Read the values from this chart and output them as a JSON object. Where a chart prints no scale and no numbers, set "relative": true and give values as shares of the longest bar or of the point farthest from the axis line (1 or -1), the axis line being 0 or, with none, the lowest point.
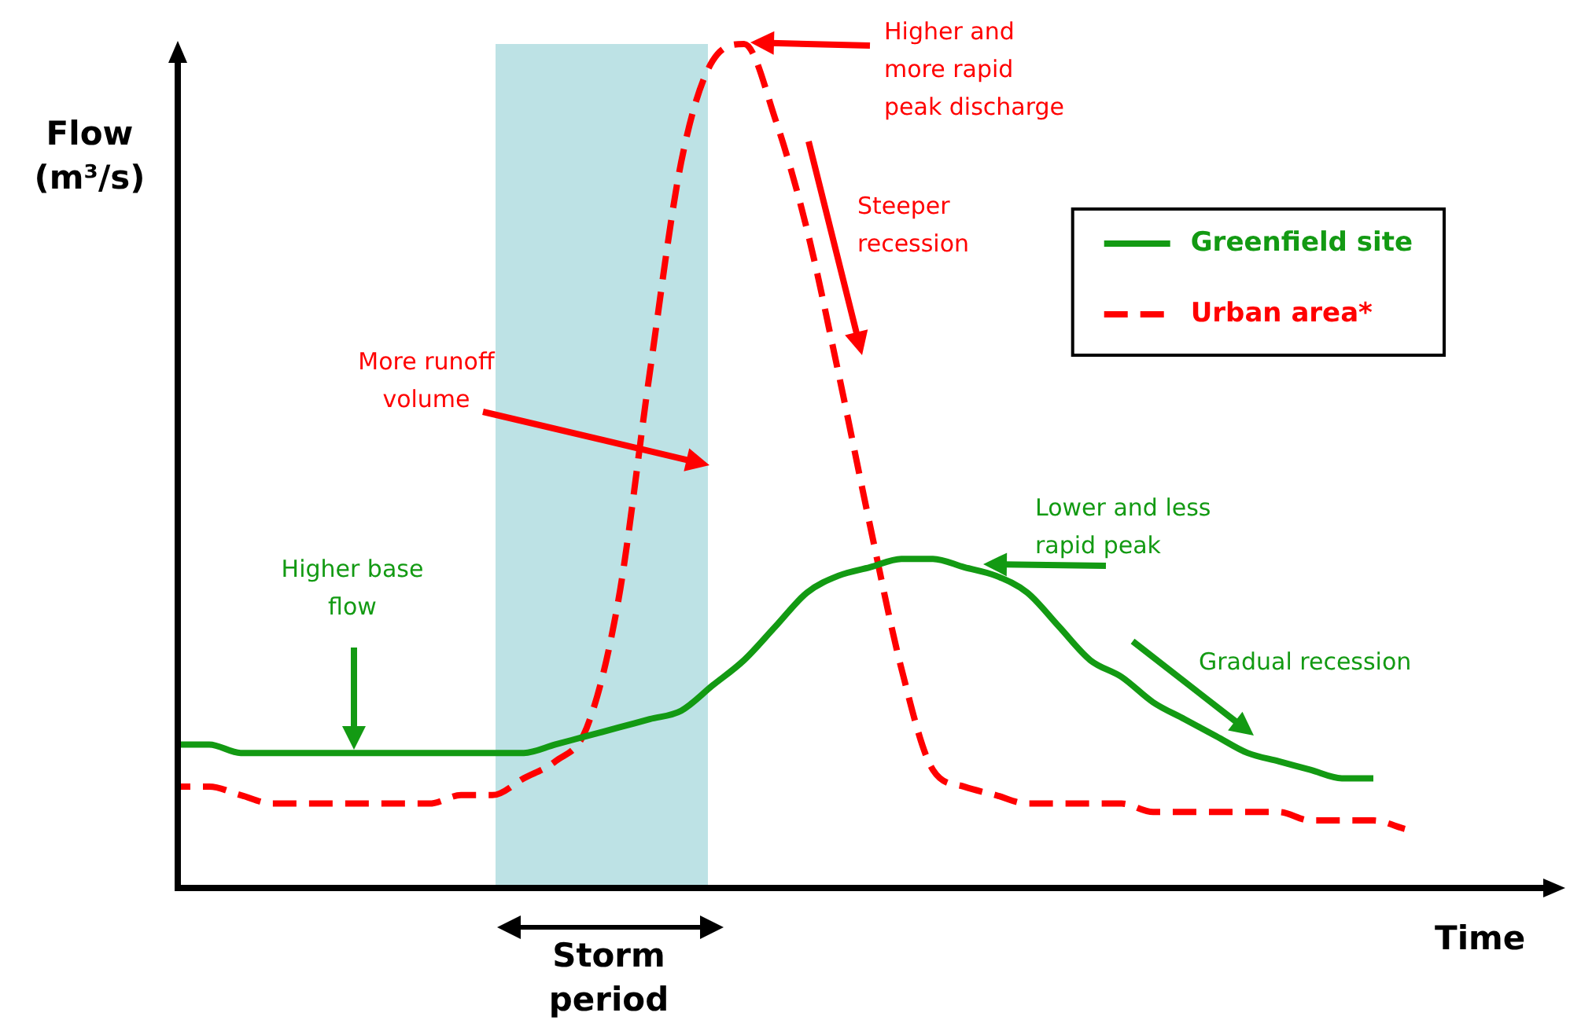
{
  "chart_data": {
    "type": "line",
    "relative": true,
    "xlabel": "Time",
    "ylabel": "Flow (m³/s)",
    "categories": [
      null,
      null,
      null,
      null,
      null,
      null,
      null,
      null,
      null,
      null,
      null,
      null,
      null,
      null,
      null,
      null,
      null,
      null,
      null,
      null,
      null,
      null,
      null,
      null,
      null,
      null,
      null,
      null,
      null,
      null,
      null,
      null,
      null,
      null,
      null,
      null,
      null,
      null,
      null,
      null,
      null,
      null,
      null,
      null
    ],
    "series": [
      {
        "name": "Greenfield site",
        "color": "#139a13",
        "line_style": "solid",
        "values": [
          0.17,
          0.17,
          0.16,
          0.16,
          0.16,
          0.16,
          0.16,
          0.16,
          0.16,
          0.16,
          0.16,
          0.16,
          0.17,
          0.18,
          0.19,
          0.2,
          0.21,
          0.24,
          0.27,
          0.31,
          0.35,
          0.37,
          0.38,
          0.39,
          0.39,
          0.38,
          0.37,
          0.35,
          0.31,
          0.27,
          0.25,
          0.22,
          0.2,
          0.18,
          0.16,
          0.15,
          0.14,
          0.13,
          0.13,
          null,
          null,
          null,
          null,
          null
        ]
      },
      {
        "name": "Urban area*",
        "color": "#ff0000",
        "line_style": "dashed",
        "values": [
          0.12,
          0.12,
          0.11,
          0.1,
          0.1,
          0.1,
          0.1,
          0.1,
          0.1,
          0.11,
          0.11,
          0.13,
          0.15,
          0.19,
          0.34,
          0.61,
          0.86,
          0.98,
          1,
          0.91,
          0.78,
          0.61,
          0.43,
          0.26,
          0.14,
          0.12,
          0.11,
          0.1,
          0.1,
          0.1,
          0.1,
          0.09,
          0.09,
          0.09,
          0.09,
          0.09,
          0.08,
          0.08,
          0.08,
          0.07,
          null,
          null,
          null,
          null
        ]
      }
    ],
    "annotations": [
      "Higher and more rapid peak discharge",
      "Steeper recession",
      "More runoff volume",
      "Lower and less rapid peak",
      "Higher base flow",
      "Gradual recession",
      "Storm period"
    ],
    "legend": "top right",
    "marker": "none"
  }
}
